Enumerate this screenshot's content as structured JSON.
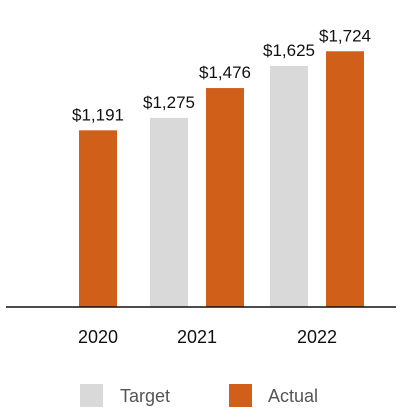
{
  "chart_data": {
    "type": "bar",
    "categories": [
      "2020",
      "2021",
      "2022"
    ],
    "series": [
      {
        "name": "Target",
        "values": [
          null,
          1275,
          1625
        ],
        "labels": [
          "",
          "$1,275",
          "$1,625"
        ],
        "color": "#d9d9d9"
      },
      {
        "name": "Actual",
        "values": [
          1191,
          1476,
          1724
        ],
        "labels": [
          "$1,191",
          "$1,476",
          "$1,724"
        ],
        "color": "#d05f1a"
      }
    ],
    "title": "",
    "xlabel": "",
    "ylabel": "",
    "ylim": [
      0,
      1800
    ],
    "grid": false,
    "legend": "bottom"
  }
}
